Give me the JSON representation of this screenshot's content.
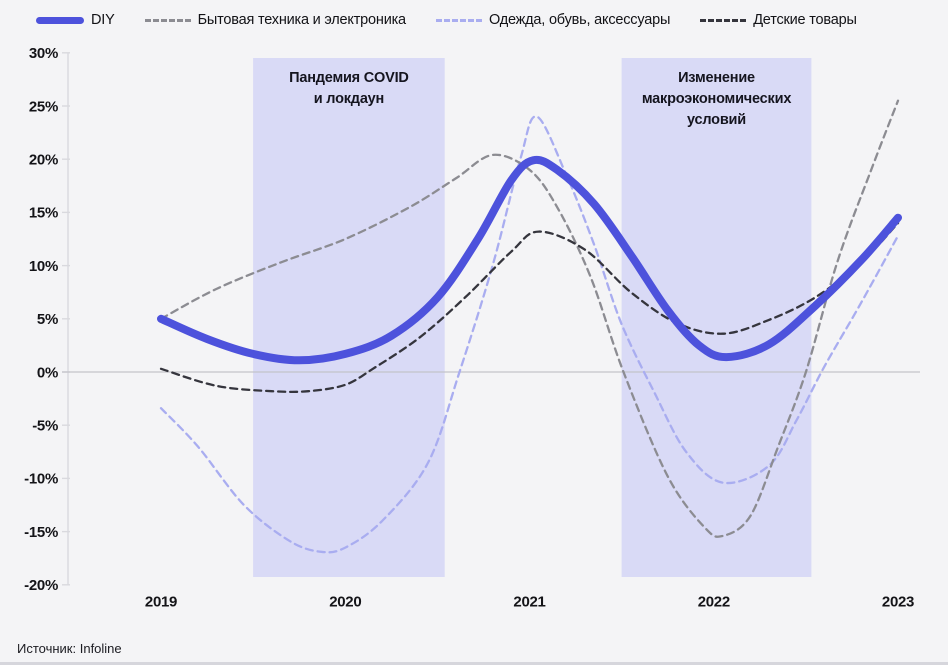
{
  "page": {
    "background": "#f4f4f6"
  },
  "source": {
    "label": "Источник: Infoline"
  },
  "chart_data": {
    "type": "line",
    "title": "",
    "xlabel": "",
    "ylabel": "",
    "x_years": [
      2019,
      2020,
      2021,
      2022,
      2023
    ],
    "ylim": [
      -20,
      30
    ],
    "ytick_values": [
      30,
      25,
      20,
      15,
      10,
      5,
      0,
      -5,
      -10,
      -15,
      -20
    ],
    "ytick_labels": [
      "30%",
      "25%",
      "20%",
      "15%",
      "10%",
      "5%",
      "0%",
      "-5%",
      "-10%",
      "-15%",
      "-20%"
    ],
    "grid": "zero-line-only",
    "legend_position": "top",
    "zero_line": true,
    "series": [
      {
        "name": "DIY",
        "color": "#4d52dc",
        "line": "solid",
        "width": 8,
        "z": 4,
        "points": [
          [
            2019,
            5
          ],
          [
            2019.25,
            3.1
          ],
          [
            2019.5,
            1.7
          ],
          [
            2019.75,
            1.1
          ],
          [
            2020,
            1.7
          ],
          [
            2020.25,
            3.4
          ],
          [
            2020.5,
            7
          ],
          [
            2020.72,
            12.5
          ],
          [
            2020.9,
            18
          ],
          [
            2021.02,
            19.9
          ],
          [
            2021.15,
            19
          ],
          [
            2021.35,
            15.8
          ],
          [
            2021.55,
            11
          ],
          [
            2021.75,
            5.8
          ],
          [
            2021.92,
            2.5
          ],
          [
            2022.07,
            1.4
          ],
          [
            2022.3,
            2.6
          ],
          [
            2022.55,
            6.2
          ],
          [
            2022.8,
            10.5
          ],
          [
            2023,
            14.5
          ]
        ]
      },
      {
        "name": "Бытовая техника и электроника",
        "color": "#8c8c92",
        "line": "dashed",
        "width": 2.3,
        "z": 2,
        "points": [
          [
            2019,
            5
          ],
          [
            2019.3,
            7.8
          ],
          [
            2019.65,
            10.3
          ],
          [
            2020,
            12.5
          ],
          [
            2020.35,
            15.5
          ],
          [
            2020.6,
            18.2
          ],
          [
            2020.8,
            20.4
          ],
          [
            2021,
            19
          ],
          [
            2021.15,
            15.5
          ],
          [
            2021.33,
            9
          ],
          [
            2021.51,
            0
          ],
          [
            2021.75,
            -9.8
          ],
          [
            2021.95,
            -14.6
          ],
          [
            2022.05,
            -15.4
          ],
          [
            2022.2,
            -13.5
          ],
          [
            2022.35,
            -7
          ],
          [
            2022.5,
            0
          ],
          [
            2022.67,
            10.3
          ],
          [
            2022.85,
            18.8
          ],
          [
            2023,
            25.5
          ]
        ]
      },
      {
        "name": "Одежда, обувь, аксессуары",
        "color": "#a9adf0",
        "line": "dashed",
        "width": 2.3,
        "z": 1,
        "points": [
          [
            2019,
            -3.4
          ],
          [
            2019.2,
            -7
          ],
          [
            2019.45,
            -12.5
          ],
          [
            2019.7,
            -15.9
          ],
          [
            2019.87,
            -16.9
          ],
          [
            2020,
            -16.5
          ],
          [
            2020.2,
            -14
          ],
          [
            2020.45,
            -8.5
          ],
          [
            2020.62,
            0
          ],
          [
            2020.8,
            10
          ],
          [
            2020.95,
            20
          ],
          [
            2021.04,
            24
          ],
          [
            2021.2,
            18.5
          ],
          [
            2021.35,
            12
          ],
          [
            2021.5,
            4.5
          ],
          [
            2021.68,
            -2
          ],
          [
            2021.85,
            -7.5
          ],
          [
            2022.05,
            -10.4
          ],
          [
            2022.3,
            -8.8
          ],
          [
            2022.45,
            -4.5
          ],
          [
            2022.6,
            0.5
          ],
          [
            2022.8,
            6.5
          ],
          [
            2023,
            12.8
          ]
        ]
      },
      {
        "name": "Детские товары",
        "color": "#35353d",
        "line": "dashed",
        "width": 2.3,
        "z": 3,
        "points": [
          [
            2019,
            0.3
          ],
          [
            2019.3,
            -1.3
          ],
          [
            2019.6,
            -1.8
          ],
          [
            2019.8,
            -1.8
          ],
          [
            2020,
            -1.2
          ],
          [
            2020.15,
            0.3
          ],
          [
            2020.4,
            3.2
          ],
          [
            2020.65,
            7
          ],
          [
            2020.9,
            11.3
          ],
          [
            2021.05,
            13.2
          ],
          [
            2021.3,
            11.5
          ],
          [
            2021.55,
            7.5
          ],
          [
            2021.8,
            4.6
          ],
          [
            2022.05,
            3.6
          ],
          [
            2022.3,
            4.9
          ],
          [
            2022.55,
            7
          ],
          [
            2022.8,
            10.3
          ],
          [
            2023,
            14
          ]
        ]
      }
    ],
    "highlight_bands": [
      {
        "lines": [
          "Пандемия COVID",
          "и локдаун"
        ],
        "year_range": [
          2019.5,
          2020.54
        ],
        "fill": "#d9daf6"
      },
      {
        "lines": [
          "Изменение",
          "макроэкономических",
          "условий"
        ],
        "year_range": [
          2021.5,
          2022.53
        ],
        "fill": "#d9daf6"
      }
    ]
  }
}
